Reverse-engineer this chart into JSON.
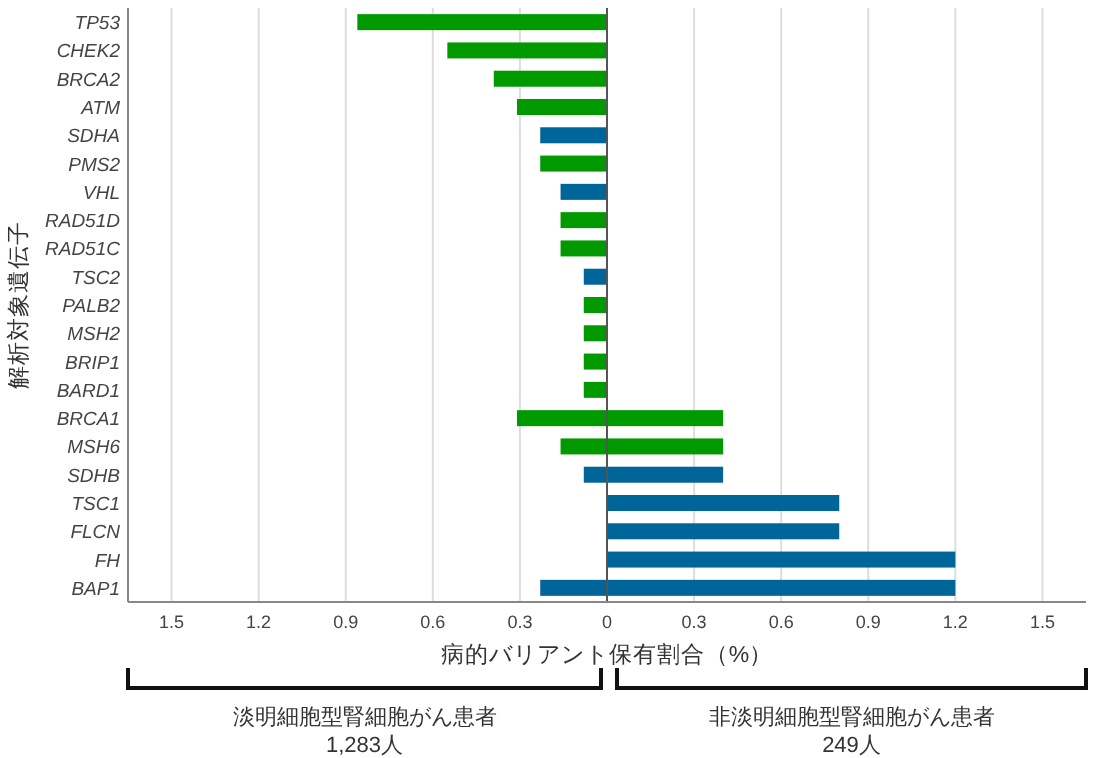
{
  "chart_data": {
    "type": "bar",
    "orientation": "horizontal",
    "ylabel": "解析対象遺伝子",
    "xlabel": "病的バリアント保有割合（%）",
    "categories": [
      "TP53",
      "CHEK2",
      "BRCA2",
      "ATM",
      "SDHA",
      "PMS2",
      "VHL",
      "RAD51D",
      "RAD51C",
      "TSC2",
      "PALB2",
      "MSH2",
      "BRIP1",
      "BARD1",
      "BRCA1",
      "MSH6",
      "SDHB",
      "TSC1",
      "FLCN",
      "FH",
      "BAP1"
    ],
    "series": [
      {
        "values": [
          -0.86,
          -0.55,
          -0.39,
          -0.31,
          -0.23,
          -0.23,
          -0.16,
          -0.16,
          -0.16,
          -0.08,
          -0.08,
          -0.08,
          -0.08,
          -0.08,
          -0.31,
          -0.16,
          -0.08,
          null,
          null,
          null,
          -0.23
        ],
        "colors": [
          "#009900",
          "#009900",
          "#009900",
          "#009900",
          "#006699",
          "#009900",
          "#006699",
          "#009900",
          "#009900",
          "#006699",
          "#009900",
          "#009900",
          "#009900",
          "#009900",
          "#009900",
          "#009900",
          "#006699",
          null,
          null,
          null,
          "#006699"
        ]
      },
      {
        "values": [
          null,
          null,
          null,
          null,
          null,
          null,
          null,
          null,
          null,
          null,
          null,
          null,
          null,
          null,
          0.4,
          0.4,
          0.4,
          0.8,
          0.8,
          1.2,
          1.2
        ],
        "colors": [
          null,
          null,
          null,
          null,
          null,
          null,
          null,
          null,
          null,
          null,
          null,
          null,
          null,
          null,
          "#009900",
          "#009900",
          "#006699",
          "#006699",
          "#006699",
          "#006699",
          "#006699"
        ]
      }
    ],
    "xlim": [
      -1.65,
      1.65
    ],
    "xticks": [
      {
        "value": -1.5,
        "label": "1.5"
      },
      {
        "value": -1.2,
        "label": "1.2"
      },
      {
        "value": -0.9,
        "label": "0.9"
      },
      {
        "value": -0.6,
        "label": "0.6"
      },
      {
        "value": -0.3,
        "label": "0.3"
      },
      0,
      0.3,
      0.6,
      0.9,
      1.2,
      1.5
    ],
    "grid": "x",
    "annotations": [
      "淡明細胞型腎細胞がん患者\n1,283人",
      "非淡明細胞型腎細胞がん患者\n249人"
    ]
  }
}
